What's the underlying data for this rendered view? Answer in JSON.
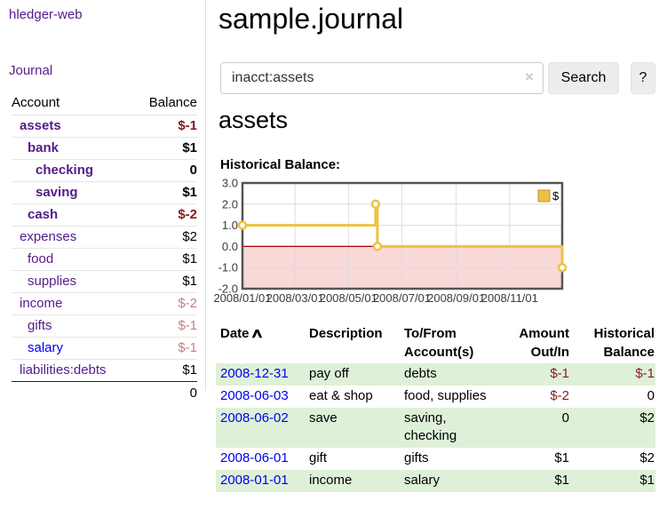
{
  "app": {
    "brand": "hledger-web",
    "nav_journal": "Journal"
  },
  "page": {
    "title": "sample.journal"
  },
  "search": {
    "value": "inacct:assets",
    "clear_icon": "×",
    "search_button": "Search",
    "help_button": "?"
  },
  "account_view": {
    "heading": "assets",
    "chart_title": "Historical Balance:"
  },
  "sidebar_table": {
    "headers": {
      "account": "Account",
      "balance": "Balance"
    },
    "accounts": [
      {
        "name": "assets",
        "depth": 1,
        "balance": "$-1",
        "bold": true,
        "balance_style": "negative"
      },
      {
        "name": "bank",
        "depth": 2,
        "balance": "$1",
        "bold": true,
        "balance_style": "normal"
      },
      {
        "name": "checking",
        "depth": 3,
        "balance": "0",
        "bold": true,
        "balance_style": "normal"
      },
      {
        "name": "saving",
        "depth": 3,
        "balance": "$1",
        "bold": true,
        "balance_style": "normal"
      },
      {
        "name": "cash",
        "depth": 2,
        "balance": "$-2",
        "bold": true,
        "balance_style": "negative"
      },
      {
        "name": "expenses",
        "depth": 1,
        "balance": "$2",
        "bold": false,
        "balance_style": "normal"
      },
      {
        "name": "food",
        "depth": 2,
        "balance": "$1",
        "bold": false,
        "balance_style": "normal"
      },
      {
        "name": "supplies",
        "depth": 2,
        "balance": "$1",
        "bold": false,
        "balance_style": "normal"
      },
      {
        "name": "income",
        "depth": 1,
        "balance": "$-2",
        "bold": false,
        "balance_style": "negative-dim"
      },
      {
        "name": "gifts",
        "depth": 2,
        "balance": "$-1",
        "bold": false,
        "balance_style": "negative-dim"
      },
      {
        "name": "salary",
        "depth": 2,
        "balance": "$-1",
        "bold": false,
        "balance_style": "negative-dim",
        "link_color": "blue"
      },
      {
        "name": "liabilities:debts",
        "depth": 1,
        "balance": "$1",
        "bold": false,
        "balance_style": "normal"
      }
    ],
    "total": "0"
  },
  "register": {
    "sort_icon": "∧",
    "columns": [
      {
        "id": "date",
        "lines": [
          "Date"
        ],
        "align": "left",
        "sortable": true
      },
      {
        "id": "description",
        "lines": [
          "Description"
        ],
        "align": "left",
        "sortable": false
      },
      {
        "id": "accounts",
        "lines": [
          "To/From",
          "Account(s)"
        ],
        "align": "left",
        "sortable": false
      },
      {
        "id": "amount",
        "lines": [
          "Amount",
          "Out/In"
        ],
        "align": "right",
        "sortable": false
      },
      {
        "id": "balance",
        "lines": [
          "Historical",
          "Balance"
        ],
        "align": "right",
        "sortable": false
      }
    ],
    "rows": [
      {
        "date": "2008-12-31",
        "description": "pay off",
        "accounts": [
          "debts"
        ],
        "amount": "$-1",
        "amount_negative": true,
        "balance": "$-1",
        "balance_negative": true,
        "highlighted": true
      },
      {
        "date": "2008-06-03",
        "description": "eat & shop",
        "accounts": [
          "food, supplies"
        ],
        "amount": "$-2",
        "amount_negative": true,
        "balance": "0",
        "balance_negative": false,
        "highlighted": false
      },
      {
        "date": "2008-06-02",
        "description": "save",
        "accounts": [
          "saving,",
          "checking"
        ],
        "amount": "0",
        "amount_negative": false,
        "balance": "$2",
        "balance_negative": false,
        "highlighted": true
      },
      {
        "date": "2008-06-01",
        "description": "gift",
        "accounts": [
          "gifts"
        ],
        "amount": "$1",
        "amount_negative": false,
        "balance": "$2",
        "balance_negative": false,
        "highlighted": false
      },
      {
        "date": "2008-01-01",
        "description": "income",
        "accounts": [
          "salary"
        ],
        "amount": "$1",
        "amount_negative": false,
        "balance": "$1",
        "balance_negative": false,
        "highlighted": true
      }
    ]
  },
  "chart_data": {
    "type": "line",
    "style": "steps",
    "title": "Historical Balance:",
    "x_type": "date",
    "x_range": [
      "2008-01-01",
      "2008-12-31"
    ],
    "ylim": [
      -2,
      3
    ],
    "series": [
      {
        "name": "$",
        "color": "#edc240",
        "points": [
          [
            "2008-01-01",
            1
          ],
          [
            "2008-06-01",
            2
          ],
          [
            "2008-06-03",
            0
          ],
          [
            "2008-12-31",
            -1
          ]
        ]
      }
    ],
    "yticks": [
      {
        "v": 3,
        "label": "3.0"
      },
      {
        "v": 2,
        "label": "2.0"
      },
      {
        "v": 1,
        "label": "1.0"
      },
      {
        "v": 0,
        "label": "0.0"
      },
      {
        "v": -1,
        "label": "-1.0"
      },
      {
        "v": -2,
        "label": "-2.0"
      }
    ],
    "xticks": [
      {
        "d": "2008-01-01",
        "label": "2008/01/01"
      },
      {
        "d": "2008-03-01",
        "label": "2008/03/01"
      },
      {
        "d": "2008-05-01",
        "label": "2008/05/01"
      },
      {
        "d": "2008-07-01",
        "label": "2008/07/01"
      },
      {
        "d": "2008-09-01",
        "label": "2008/09/01"
      },
      {
        "d": "2008-11-01",
        "label": "2008/11/01"
      }
    ],
    "grid": true,
    "legend": {
      "position": "top-right",
      "label": "$"
    },
    "negative_region_color": "#f9d8d8",
    "zero_line_color": "#aa0000"
  },
  "colors": {
    "link_purple": "#551a8b",
    "link_blue": "#0000ee",
    "negative_strong": "#861919",
    "negative_dim": "#c28383",
    "row_highlight_green": "#dff0d8",
    "series_gold": "#edc240",
    "chart_negative_fill": "#f9d8d8",
    "chart_zero_line": "#aa0000"
  }
}
